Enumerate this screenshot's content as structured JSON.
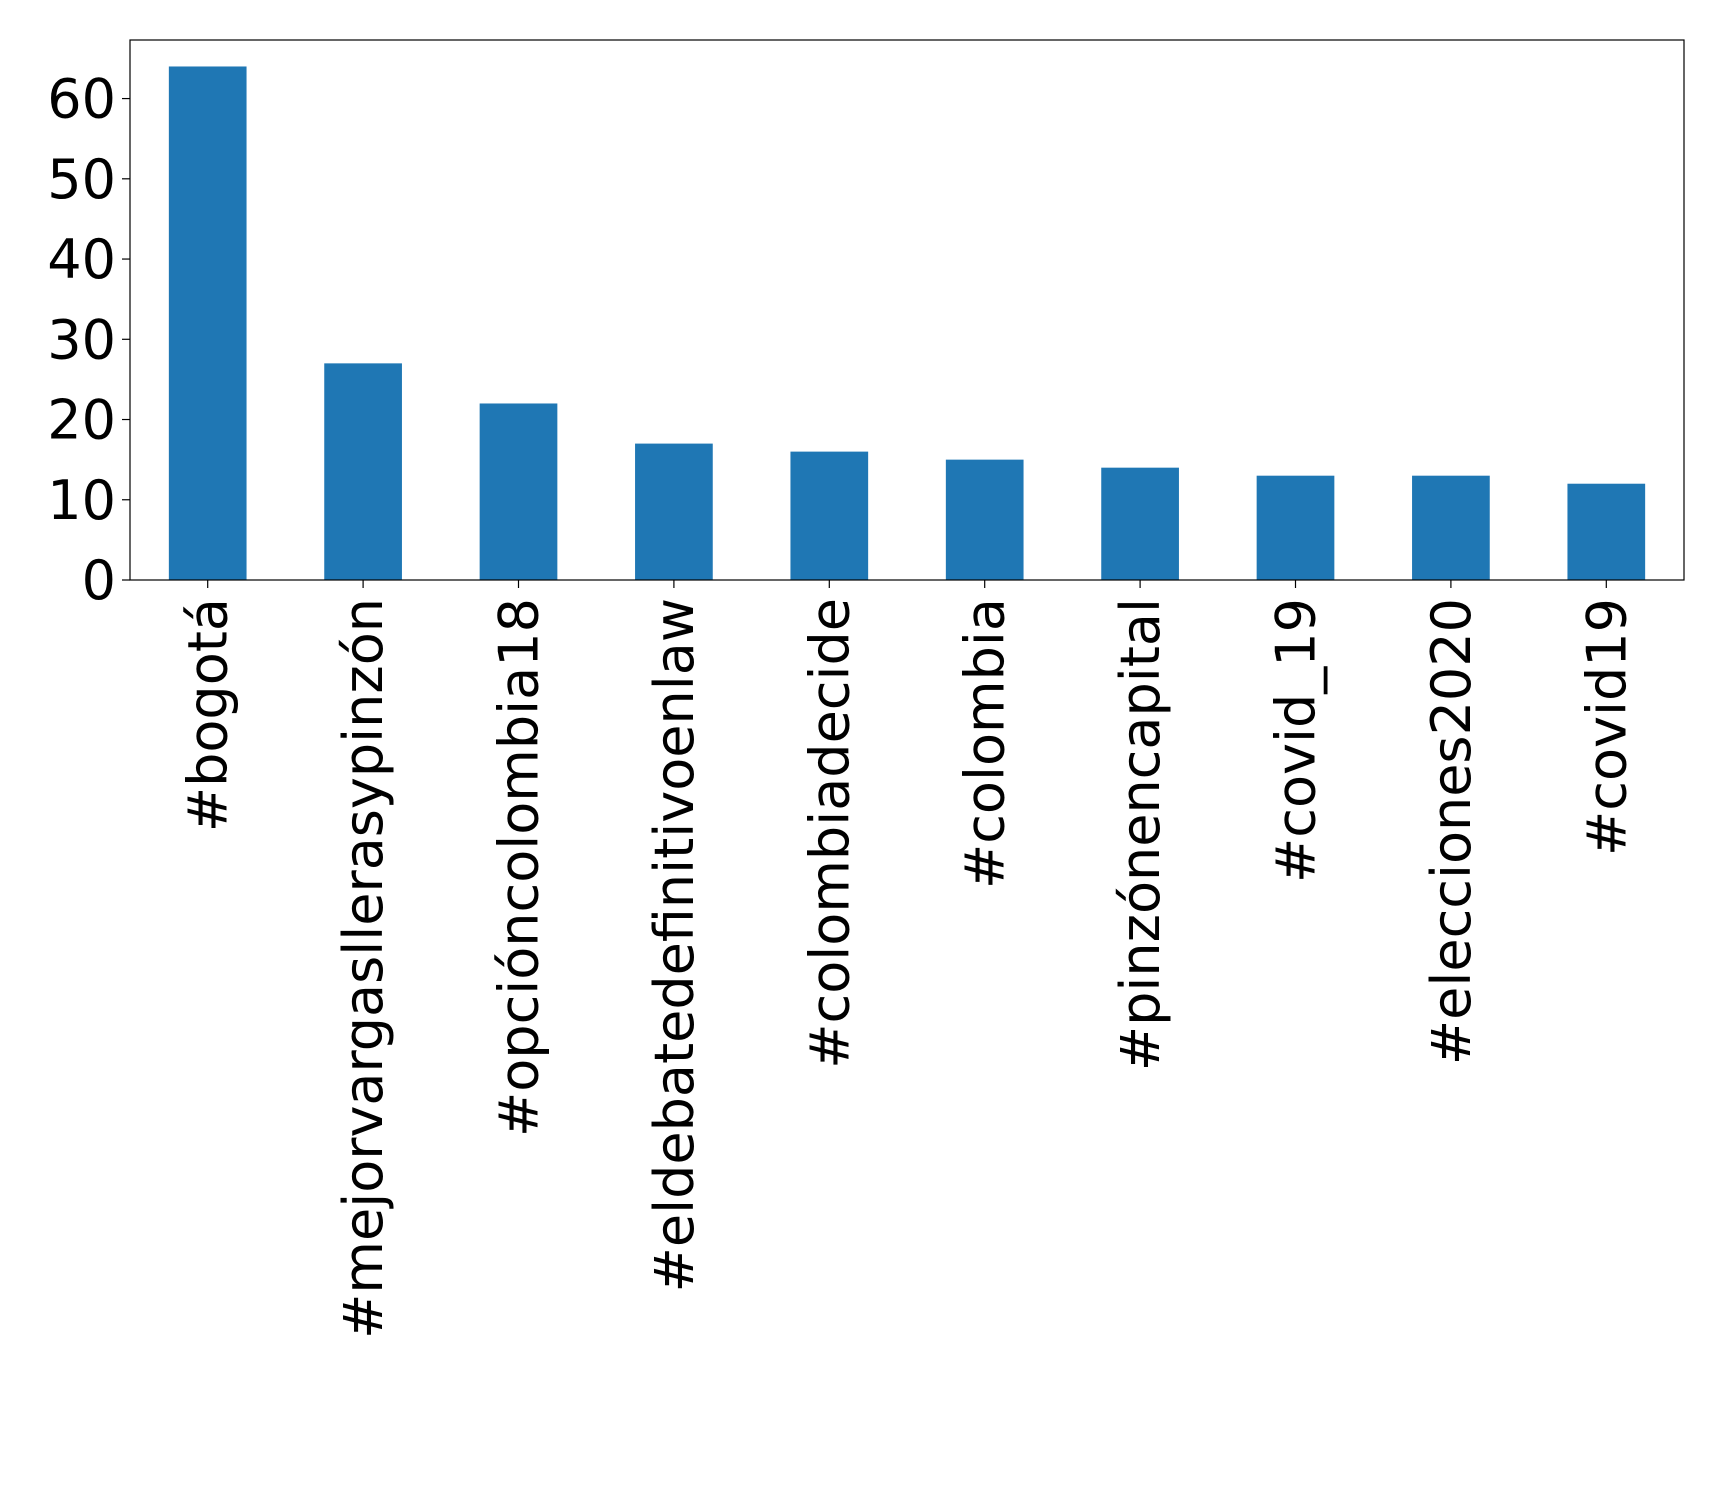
{
  "chart_data": {
    "type": "bar",
    "categories": [
      "#bogotá",
      "#mejorvargasllerasypinzón",
      "#opcióncolombia18",
      "#eldebatedefinitivoenlaw",
      "#colombiadecide",
      "#colombia",
      "#pinzónencapital",
      "#covid_19",
      "#elecciones2020",
      "#covid19"
    ],
    "values": [
      64,
      27,
      22,
      17,
      16,
      15,
      14,
      13,
      13,
      12
    ],
    "color": "#1f77b4",
    "ylim": [
      0,
      67.3
    ],
    "yticks": [
      0,
      10,
      20,
      30,
      40,
      50,
      60
    ],
    "grid": false
  }
}
